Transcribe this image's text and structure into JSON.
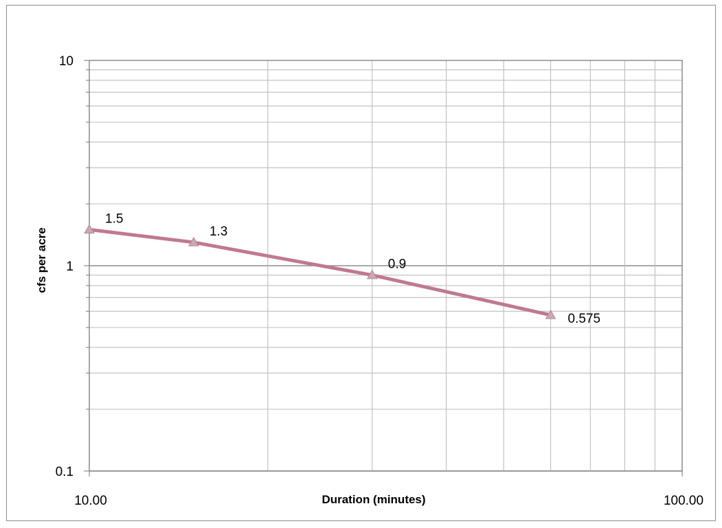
{
  "chart_data": {
    "type": "line",
    "title": "",
    "xlabel": "Duration (minutes)",
    "ylabel": "cfs per acre",
    "x_scale": "log",
    "y_scale": "log",
    "xlim": [
      10,
      100
    ],
    "ylim": [
      0.1,
      10
    ],
    "x_tick_labels": [
      "10.00",
      "100.00"
    ],
    "y_tick_labels": [
      "10",
      "1",
      "0.1"
    ],
    "grid": true,
    "legend": "none",
    "series": [
      {
        "marker": "triangle",
        "color": "#c0798f",
        "x": [
          10,
          15,
          30,
          60
        ],
        "y": [
          1.5,
          1.3,
          0.9,
          0.575
        ],
        "labels": [
          "1.5",
          "1.3",
          "0.9",
          "0.575"
        ]
      }
    ]
  }
}
